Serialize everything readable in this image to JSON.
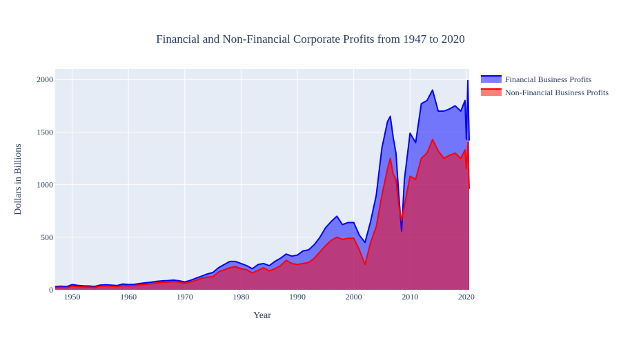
{
  "chart_data": {
    "type": "area",
    "title": "Financial and Non-Financial Corporate Profits from 1947 to 2020",
    "xlabel": "Year",
    "ylabel": "Dollars in Billions",
    "xlim": [
      1947,
      2020.5
    ],
    "ylim": [
      0,
      2100
    ],
    "x_ticks": [
      1950,
      1960,
      1970,
      1980,
      1990,
      2000,
      2010,
      2020
    ],
    "y_ticks": [
      0,
      500,
      1000,
      1500,
      2000
    ],
    "grid": true,
    "legend_position": "top-right",
    "x": [
      1947,
      1948,
      1949,
      1950,
      1951,
      1952,
      1953,
      1954,
      1955,
      1956,
      1957,
      1958,
      1959,
      1960,
      1961,
      1962,
      1963,
      1964,
      1965,
      1966,
      1967,
      1968,
      1969,
      1970,
      1971,
      1972,
      1973,
      1974,
      1975,
      1976,
      1977,
      1978,
      1979,
      1980,
      1981,
      1982,
      1983,
      1984,
      1985,
      1986,
      1987,
      1988,
      1989,
      1990,
      1991,
      1992,
      1993,
      1994,
      1995,
      1996,
      1997,
      1998,
      1999,
      2000,
      2001,
      2002,
      2003,
      2004,
      2005,
      2006,
      2006.5,
      2007,
      2007.5,
      2008,
      2008.5,
      2009,
      2010,
      2011,
      2012,
      2013,
      2014,
      2015,
      2016,
      2017,
      2018,
      2019,
      2019.75,
      2020,
      2020.25,
      2020.5
    ],
    "series": [
      {
        "name": "Financial Business Profits",
        "color": "#0000ff",
        "fill": "rgba(0,0,255,0.5)",
        "values": [
          30,
          35,
          30,
          50,
          42,
          38,
          36,
          32,
          45,
          48,
          44,
          40,
          55,
          50,
          52,
          60,
          66,
          72,
          80,
          85,
          88,
          92,
          86,
          75,
          90,
          110,
          130,
          150,
          165,
          210,
          240,
          270,
          270,
          250,
          230,
          200,
          240,
          250,
          230,
          270,
          300,
          340,
          320,
          330,
          370,
          380,
          430,
          500,
          590,
          650,
          700,
          620,
          640,
          640,
          520,
          450,
          650,
          900,
          1350,
          1600,
          1650,
          1450,
          1300,
          900,
          560,
          1050,
          1490,
          1400,
          1770,
          1800,
          1900,
          1700,
          1700,
          1720,
          1750,
          1700,
          1800,
          1430,
          1990,
          1420
        ]
      },
      {
        "name": "Non-Financial Business Profits",
        "color": "#ff0000",
        "fill": "rgba(255,0,0,0.5)",
        "values": [
          20,
          25,
          20,
          35,
          30,
          28,
          26,
          22,
          35,
          38,
          34,
          30,
          42,
          38,
          40,
          48,
          52,
          58,
          65,
          70,
          72,
          78,
          72,
          60,
          75,
          90,
          110,
          120,
          125,
          170,
          190,
          210,
          220,
          200,
          190,
          160,
          185,
          210,
          180,
          200,
          230,
          280,
          250,
          240,
          250,
          260,
          300,
          360,
          420,
          470,
          500,
          480,
          490,
          490,
          380,
          240,
          450,
          600,
          900,
          1150,
          1250,
          1100,
          1050,
          800,
          660,
          800,
          1080,
          1050,
          1250,
          1300,
          1430,
          1320,
          1250,
          1280,
          1300,
          1250,
          1330,
          1150,
          1400,
          960
        ]
      }
    ]
  }
}
